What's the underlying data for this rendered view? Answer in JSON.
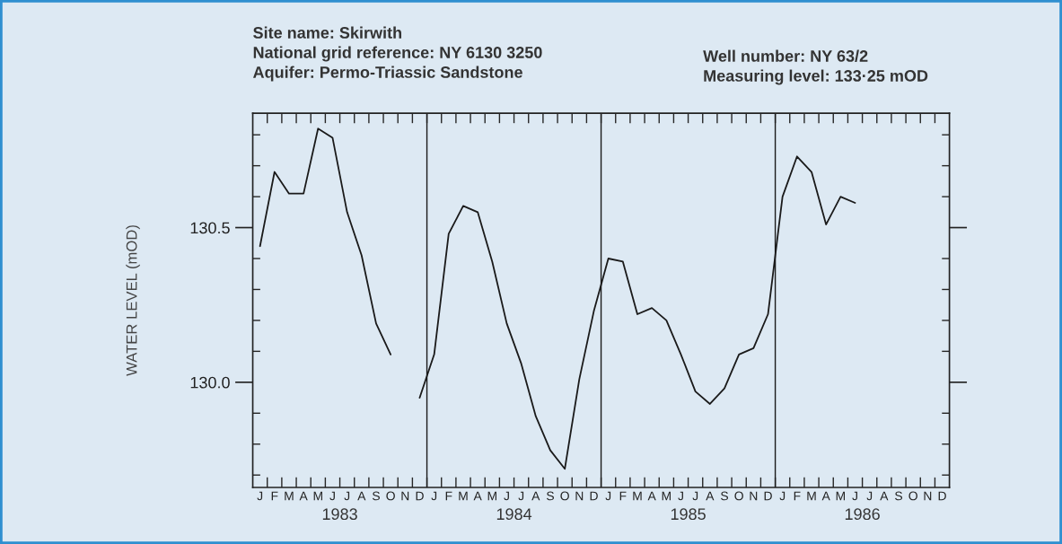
{
  "chart_data": {
    "type": "line",
    "ylabel": "WATER LEVEL (mOD)",
    "annotations": [
      "Site name: Skirwith",
      "National grid reference: NY 6130 3250",
      "Aquifer: Permo-Triassic Sandstone",
      "Well number: NY 63/2",
      "Measuring level: 133·25 mOD",
      "1983",
      "1984",
      "1985",
      "1986"
    ],
    "categories": [
      "J",
      "F",
      "M",
      "A",
      "M",
      "J",
      "J",
      "A",
      "S",
      "O",
      "N",
      "D",
      "J",
      "F",
      "M",
      "A",
      "M",
      "J",
      "J",
      "A",
      "S",
      "O",
      "N",
      "D",
      "J",
      "F",
      "M",
      "A",
      "M",
      "J",
      "J",
      "A",
      "S",
      "O",
      "N",
      "D",
      "J",
      "F",
      "M",
      "A",
      "M",
      "J",
      "J",
      "A",
      "S",
      "O",
      "N",
      "D"
    ],
    "series": [
      {
        "color": "#1a1a1a",
        "values": [
          130.44,
          130.68,
          130.61,
          130.61,
          130.82,
          130.79,
          130.55,
          130.41,
          130.19,
          130.09,
          null,
          129.95,
          130.09,
          130.48,
          130.57,
          130.55,
          130.39,
          130.19,
          130.06,
          129.89,
          129.78,
          129.72,
          130.01,
          130.23,
          130.4,
          130.39,
          130.22,
          130.24,
          130.2,
          130.09,
          129.97,
          129.93,
          129.98,
          130.09,
          130.11,
          130.22,
          130.6,
          130.73,
          130.68,
          130.51,
          130.6,
          130.58,
          null,
          null,
          null,
          null,
          null,
          null
        ]
      }
    ],
    "ylim": [
      129.66,
      130.87
    ],
    "yticks": [
      {
        "value": 129.7,
        "label": null
      },
      {
        "value": 129.8,
        "label": null
      },
      {
        "value": 129.9,
        "label": null
      },
      {
        "value": 130.0,
        "label": "130.0"
      },
      {
        "value": 130.1,
        "label": null
      },
      {
        "value": 130.2,
        "label": null
      },
      {
        "value": 130.3,
        "label": null
      },
      {
        "value": 130.4,
        "label": null
      },
      {
        "value": 130.5,
        "label": "130.5"
      },
      {
        "value": 130.6,
        "label": null
      },
      {
        "value": 130.7,
        "label": null
      },
      {
        "value": 130.8,
        "label": null
      }
    ],
    "grid": false,
    "marker": "none",
    "line_style": "solid",
    "legend": false
  }
}
